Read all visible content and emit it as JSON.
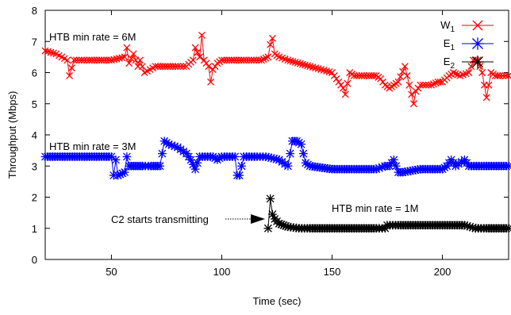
{
  "chart_data": {
    "type": "line",
    "xlabel": "Time (sec)",
    "ylabel": "Throughput (Mbps)",
    "xlim": [
      20,
      230
    ],
    "ylim": [
      0,
      8
    ],
    "xticks": [
      50,
      100,
      150,
      200
    ],
    "yticks": [
      0,
      1,
      2,
      3,
      4,
      5,
      6,
      7,
      8
    ],
    "grid": false,
    "legend_position": "top-right",
    "annotations": {
      "w1_rate": "HTB min rate = 6M",
      "e1_rate": "HTB min rate = 3M",
      "e2_rate": "HTB min rate = 1M",
      "c2_start": "C2 starts transmitting"
    },
    "series": [
      {
        "name": "W1",
        "label_base": "W",
        "label_sub": "1",
        "color": "#ff0000",
        "marker": "x",
        "x": [
          20,
          25,
          30,
          31,
          33,
          40,
          50,
          56,
          57,
          58,
          60,
          62,
          63,
          65,
          70,
          80,
          84,
          87,
          88,
          90,
          91,
          92,
          94,
          95,
          96,
          98,
          100,
          110,
          118,
          121,
          122,
          123,
          124,
          126,
          130,
          140,
          145,
          150,
          152,
          155,
          156,
          158,
          160,
          168,
          170,
          172,
          174,
          176,
          178,
          180,
          183,
          185,
          187,
          188,
          190,
          195,
          198,
          200,
          203,
          205,
          208,
          212,
          214,
          216,
          218,
          220,
          222,
          224,
          226,
          230
        ],
        "y": [
          6.7,
          6.6,
          6.4,
          5.9,
          6.4,
          6.4,
          6.4,
          6.5,
          6.8,
          6.3,
          6.6,
          6.2,
          6.4,
          6.0,
          6.2,
          6.2,
          6.2,
          6.4,
          6.8,
          6.5,
          7.2,
          6.4,
          6.2,
          5.7,
          6.1,
          6.3,
          6.4,
          6.4,
          6.4,
          6.5,
          6.9,
          7.1,
          6.6,
          6.5,
          6.4,
          6.2,
          6.1,
          6.0,
          5.8,
          5.5,
          5.3,
          6.0,
          5.9,
          5.9,
          5.9,
          5.8,
          5.6,
          5.5,
          5.6,
          5.7,
          6.2,
          5.6,
          5.0,
          5.4,
          5.6,
          5.6,
          5.7,
          5.7,
          5.9,
          6.0,
          5.9,
          6.0,
          6.4,
          6.4,
          6.0,
          5.2,
          6.0,
          5.9,
          5.9,
          5.9
        ]
      },
      {
        "name": "E1",
        "label_base": "E",
        "label_sub": "1",
        "color": "#0000ff",
        "marker": "*",
        "x": [
          20,
          30,
          40,
          50,
          51,
          52,
          53,
          56,
          57,
          58,
          60,
          62,
          64,
          68,
          70,
          72,
          74,
          76,
          80,
          84,
          86,
          88,
          90,
          96,
          98,
          100,
          106,
          107,
          108,
          110,
          116,
          120,
          126,
          130,
          132,
          134,
          136,
          138,
          140,
          150,
          160,
          170,
          174,
          176,
          178,
          180,
          182,
          190,
          200,
          202,
          204,
          206,
          210,
          212,
          220,
          230
        ],
        "y": [
          3.3,
          3.3,
          3.3,
          3.3,
          2.7,
          3.2,
          2.7,
          2.8,
          3.3,
          3.0,
          3.0,
          3.0,
          3.0,
          3.0,
          3.0,
          3.0,
          3.8,
          3.7,
          3.6,
          3.4,
          3.2,
          2.9,
          3.3,
          3.3,
          3.2,
          3.3,
          3.3,
          2.7,
          2.7,
          3.3,
          3.3,
          3.3,
          3.2,
          3.0,
          3.8,
          3.8,
          3.7,
          3.1,
          3.0,
          2.9,
          2.9,
          2.9,
          3.0,
          3.0,
          3.2,
          2.8,
          2.8,
          2.9,
          2.9,
          3.0,
          3.2,
          3.0,
          3.2,
          3.0,
          3.0,
          3.0
        ]
      },
      {
        "name": "E2",
        "label_base": "E",
        "label_sub": "2",
        "color": "#000000",
        "marker": "*",
        "x": [
          121,
          122,
          123,
          124,
          126,
          128,
          130,
          135,
          140,
          150,
          160,
          170,
          174,
          175,
          180,
          190,
          200,
          210,
          215,
          220,
          230
        ],
        "y": [
          1.0,
          1.95,
          1.45,
          1.3,
          1.15,
          1.1,
          1.05,
          1.0,
          1.0,
          1.0,
          1.0,
          1.0,
          1.0,
          1.1,
          1.1,
          1.1,
          1.1,
          1.1,
          1.0,
          1.0,
          1.0
        ]
      }
    ]
  }
}
